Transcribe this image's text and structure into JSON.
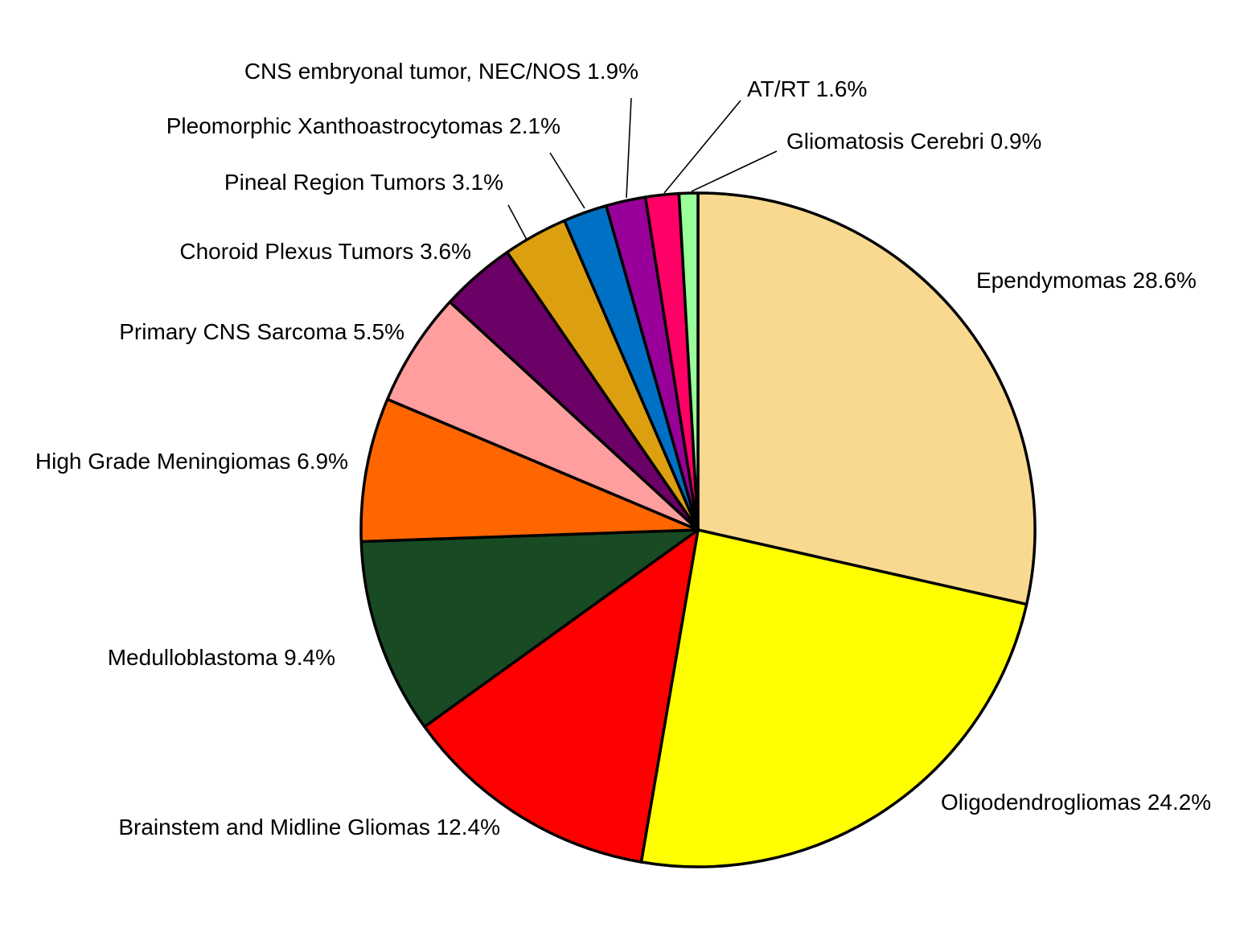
{
  "chart_data": {
    "type": "pie",
    "start_angle_deg": 0,
    "direction": "clockwise",
    "slices": [
      {
        "label": "Ependymomas 28.6%",
        "value": 28.6,
        "color": "#F9D990"
      },
      {
        "label": "Oligodendrogliomas 24.2%",
        "value": 24.2,
        "color": "#FFFF00"
      },
      {
        "label": "Brainstem and Midline Gliomas 12.4%",
        "value": 12.4,
        "color": "#FF0000"
      },
      {
        "label": "Medulloblastoma 9.4%",
        "value": 9.4,
        "color": "#184A24"
      },
      {
        "label": "High Grade Meningiomas 6.9%",
        "value": 6.9,
        "color": "#FF6600"
      },
      {
        "label": "Primary CNS Sarcoma 5.5%",
        "value": 5.5,
        "color": "#FF9E9E"
      },
      {
        "label": "Choroid Plexus Tumors 3.6%",
        "value": 3.6,
        "color": "#6B0066"
      },
      {
        "label": "Pineal Region Tumors 3.1%",
        "value": 3.1,
        "color": "#DB9F10"
      },
      {
        "label": "Pleomorphic Xanthoastrocytomas 2.1%",
        "value": 2.1,
        "color": "#0070C4"
      },
      {
        "label": "CNS embryonal tumor, NEC/NOS 1.9%",
        "value": 1.9,
        "color": "#990099"
      },
      {
        "label": "AT/RT 1.6%",
        "value": 1.6,
        "color": "#FF0066"
      },
      {
        "label": "Gliomatosis Cerebri 0.9%",
        "value": 0.9,
        "color": "#99FF99"
      }
    ]
  }
}
